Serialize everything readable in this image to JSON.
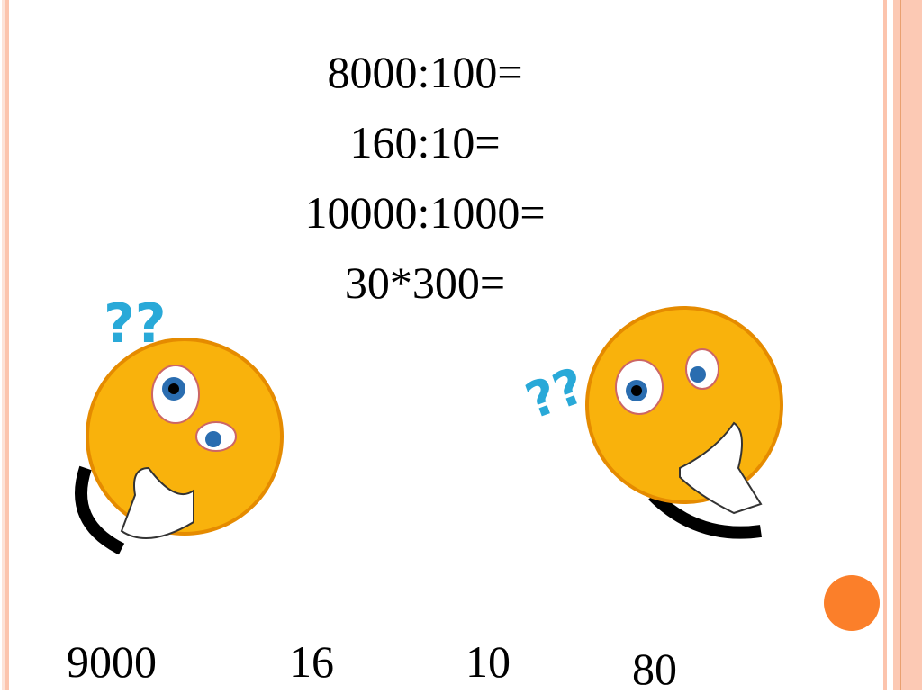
{
  "slide": {
    "equations": [
      "8000:100=",
      "160:10=",
      "10000:1000=",
      "30*300="
    ],
    "answers": [
      "9000",
      "16",
      "10",
      "80"
    ]
  },
  "colors": {
    "border": "#fcc4ad",
    "accent_dot": "#fb7f2a",
    "smiley": "#f9b20c"
  },
  "icons": [
    "thinking-smiley-icon",
    "question-marks-icon"
  ]
}
